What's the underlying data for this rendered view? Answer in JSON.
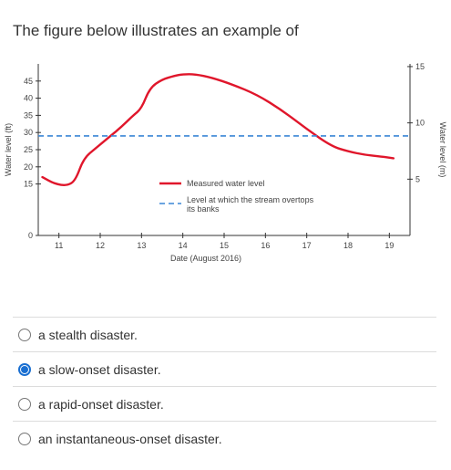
{
  "question": {
    "text": "The figure below illustrates an example of"
  },
  "chart_data": {
    "type": "line",
    "xlabel": "Date (August 2016)",
    "ylabel_left": "Water level (ft)",
    "ylabel_right": "Water level (m)",
    "x_ticks": [
      11,
      12,
      13,
      14,
      15,
      16,
      17,
      18,
      19
    ],
    "y_ticks_left": [
      0,
      15,
      20,
      25,
      30,
      35,
      40,
      45
    ],
    "y_ticks_right": [
      5,
      10,
      15
    ],
    "xlim": [
      10.5,
      19.5
    ],
    "ylim": [
      0,
      50
    ],
    "series": [
      {
        "name": "Measured water level",
        "color": "#e0162b",
        "style": "solid",
        "x": [
          10.6,
          10.9,
          11.2,
          11.4,
          11.6,
          11.9,
          12.2,
          12.5,
          12.8,
          13.0,
          13.2,
          13.5,
          13.8,
          14.0,
          14.3,
          14.7,
          15.2,
          15.8,
          16.4,
          17.0,
          17.6,
          18.0,
          18.4,
          18.8,
          19.1
        ],
        "y": [
          17,
          15,
          14.5,
          16,
          22.5,
          25.5,
          28.5,
          31.5,
          35,
          37,
          43,
          45.5,
          46.5,
          47,
          47,
          46,
          44,
          41,
          36.5,
          31,
          26,
          24.5,
          23.5,
          23,
          22.5
        ]
      },
      {
        "name": "Level at which the stream overtops its banks",
        "color": "#3a86d6",
        "style": "dashed",
        "x": [
          10.5,
          19.5
        ],
        "y": [
          29,
          29
        ]
      }
    ],
    "legend": {
      "items": [
        {
          "text": "Measured water level"
        },
        {
          "text": "Level at which the stream overtops its banks"
        }
      ]
    }
  },
  "options": [
    {
      "label": "a stealth disaster.",
      "selected": false
    },
    {
      "label": "a slow-onset disaster.",
      "selected": true
    },
    {
      "label": "a rapid-onset disaster.",
      "selected": false
    },
    {
      "label": "an instantaneous-onset disaster.",
      "selected": false
    }
  ]
}
